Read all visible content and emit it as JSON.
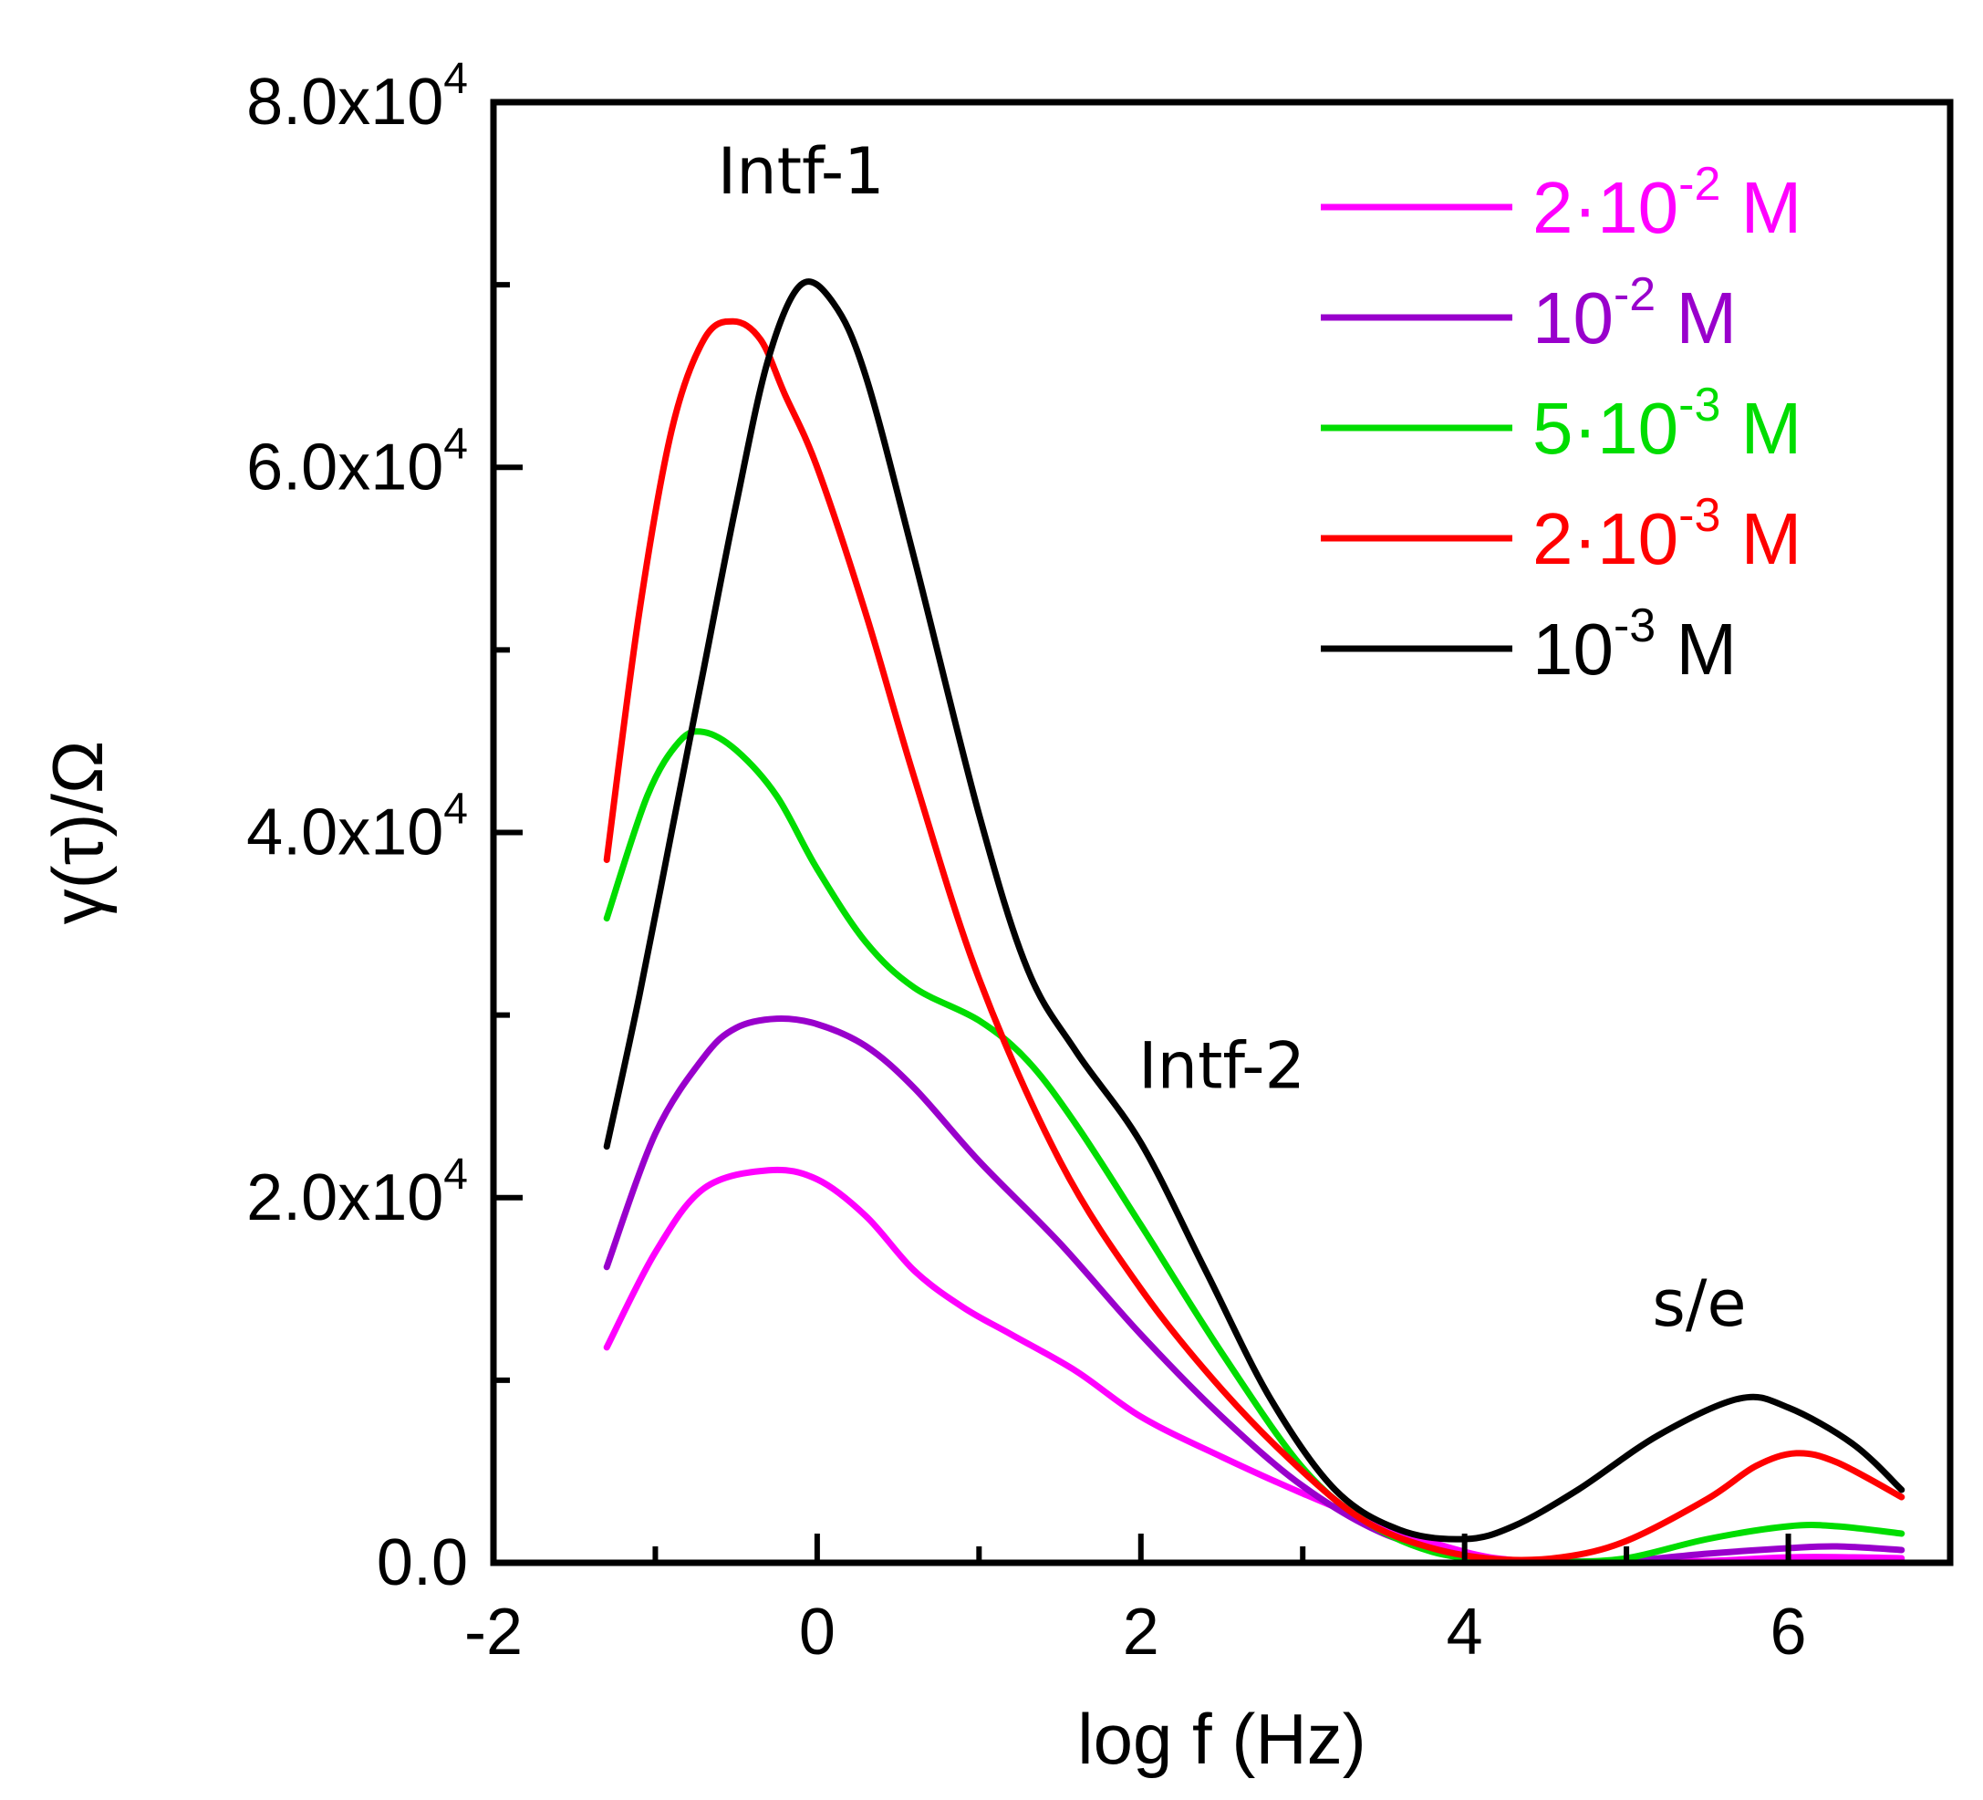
{
  "chart_data": {
    "type": "line",
    "xlabel": "log f (Hz)",
    "ylabel": "γ(τ)/Ω",
    "xlim": [
      -2,
      7
    ],
    "ylim": [
      0,
      80000
    ],
    "x_ticks": [
      {
        "value": -2,
        "label": "-2"
      },
      {
        "value": 0,
        "label": "0"
      },
      {
        "value": 2,
        "label": "2"
      },
      {
        "value": 4,
        "label": "4"
      },
      {
        "value": 6,
        "label": "6"
      }
    ],
    "x_minor_ticks": [
      -1,
      1,
      3,
      5
    ],
    "y_ticks": [
      {
        "value": 0,
        "label": "0.0"
      },
      {
        "value": 20000,
        "mantissa": "2.0x10",
        "exp": "4"
      },
      {
        "value": 40000,
        "mantissa": "4.0x10",
        "exp": "4"
      },
      {
        "value": 60000,
        "mantissa": "6.0x10",
        "exp": "4"
      },
      {
        "value": 80000,
        "mantissa": "8.0x10",
        "exp": "4"
      }
    ],
    "y_minor_ticks": [
      10000,
      30000,
      50000,
      70000
    ],
    "grid": false,
    "legend_position": "top-right",
    "annotations": [
      {
        "text": "Intf-1",
        "x": -0.1,
        "y": 75000
      },
      {
        "text": "Intf-2",
        "x": 2.5,
        "y": 26000
      },
      {
        "text": "s/e",
        "x": 5.45,
        "y": 13000
      }
    ],
    "series": [
      {
        "name": "2·10-2 M",
        "legend": {
          "pre": "2·10",
          "exp": "-2",
          "post": " M"
        },
        "color": "#ff00ff",
        "points": [
          [
            -1.3,
            11800
          ],
          [
            -1.0,
            17000
          ],
          [
            -0.7,
            20500
          ],
          [
            -0.3,
            21500
          ],
          [
            0.0,
            21000
          ],
          [
            0.3,
            19000
          ],
          [
            0.6,
            16000
          ],
          [
            0.9,
            14000
          ],
          [
            1.2,
            12500
          ],
          [
            1.6,
            10500
          ],
          [
            2.0,
            8000
          ],
          [
            2.5,
            5800
          ],
          [
            3.0,
            3800
          ],
          [
            3.5,
            2000
          ],
          [
            4.0,
            600
          ],
          [
            4.3,
            150
          ],
          [
            4.6,
            80
          ],
          [
            5.0,
            80
          ],
          [
            5.5,
            100
          ],
          [
            6.0,
            300
          ],
          [
            6.4,
            300
          ],
          [
            6.7,
            250
          ]
        ]
      },
      {
        "name": "10-2 M",
        "legend": {
          "pre": "10",
          "exp": "-2",
          "post": " M"
        },
        "color": "#9900cc",
        "points": [
          [
            -1.3,
            16200
          ],
          [
            -1.0,
            23500
          ],
          [
            -0.7,
            27700
          ],
          [
            -0.5,
            29300
          ],
          [
            -0.25,
            29800
          ],
          [
            0.0,
            29500
          ],
          [
            0.3,
            28300
          ],
          [
            0.6,
            26000
          ],
          [
            1.0,
            22000
          ],
          [
            1.5,
            17500
          ],
          [
            2.0,
            12500
          ],
          [
            2.5,
            8000
          ],
          [
            3.0,
            4200
          ],
          [
            3.5,
            1600
          ],
          [
            4.0,
            400
          ],
          [
            4.3,
            100
          ],
          [
            4.6,
            50
          ],
          [
            5.0,
            100
          ],
          [
            5.5,
            500
          ],
          [
            6.0,
            800
          ],
          [
            6.3,
            900
          ],
          [
            6.7,
            700
          ]
        ]
      },
      {
        "name": "5·10-3 M",
        "legend": {
          "pre": "5·10",
          "exp": "-3",
          "post": " M"
        },
        "color": "#00dd00",
        "points": [
          [
            -1.3,
            35300
          ],
          [
            -1.05,
            42000
          ],
          [
            -0.85,
            45000
          ],
          [
            -0.7,
            45500
          ],
          [
            -0.5,
            44500
          ],
          [
            -0.25,
            42000
          ],
          [
            0.0,
            38000
          ],
          [
            0.3,
            34000
          ],
          [
            0.6,
            31500
          ],
          [
            1.0,
            29700
          ],
          [
            1.3,
            27500
          ],
          [
            1.6,
            24000
          ],
          [
            2.0,
            18500
          ],
          [
            2.5,
            11500
          ],
          [
            3.0,
            5200
          ],
          [
            3.4,
            2200
          ],
          [
            3.8,
            600
          ],
          [
            4.2,
            150
          ],
          [
            4.6,
            60
          ],
          [
            5.0,
            250
          ],
          [
            5.5,
            1300
          ],
          [
            6.0,
            2000
          ],
          [
            6.3,
            2000
          ],
          [
            6.7,
            1600
          ]
        ]
      },
      {
        "name": "2·10-3 M",
        "legend": {
          "pre": "2·10",
          "exp": "-3",
          "post": " M"
        },
        "color": "#ff0000",
        "points": [
          [
            -1.3,
            38500
          ],
          [
            -1.1,
            52000
          ],
          [
            -0.9,
            62000
          ],
          [
            -0.7,
            67000
          ],
          [
            -0.52,
            68000
          ],
          [
            -0.35,
            67000
          ],
          [
            -0.2,
            64000
          ],
          [
            0.0,
            60000
          ],
          [
            0.3,
            52000
          ],
          [
            0.6,
            43000
          ],
          [
            1.0,
            32000
          ],
          [
            1.5,
            22000
          ],
          [
            2.0,
            15000
          ],
          [
            2.5,
            9500
          ],
          [
            3.0,
            5000
          ],
          [
            3.4,
            2200
          ],
          [
            3.8,
            800
          ],
          [
            4.2,
            200
          ],
          [
            4.6,
            300
          ],
          [
            5.0,
            1200
          ],
          [
            5.5,
            3500
          ],
          [
            5.8,
            5300
          ],
          [
            6.05,
            6000
          ],
          [
            6.3,
            5500
          ],
          [
            6.7,
            3600
          ]
        ]
      },
      {
        "name": "10-3 M",
        "legend": {
          "pre": "10",
          "exp": "-3",
          "post": " M"
        },
        "color": "#000000",
        "points": [
          [
            -1.3,
            22800
          ],
          [
            -1.1,
            31000
          ],
          [
            -0.9,
            40000
          ],
          [
            -0.7,
            49000
          ],
          [
            -0.5,
            58000
          ],
          [
            -0.3,
            66000
          ],
          [
            -0.1,
            70000
          ],
          [
            0.1,
            69000
          ],
          [
            0.3,
            65000
          ],
          [
            0.6,
            55000
          ],
          [
            1.0,
            41000
          ],
          [
            1.3,
            32500
          ],
          [
            1.6,
            28000
          ],
          [
            2.0,
            23000
          ],
          [
            2.4,
            16000
          ],
          [
            2.8,
            9000
          ],
          [
            3.2,
            4000
          ],
          [
            3.6,
            1800
          ],
          [
            4.0,
            1300
          ],
          [
            4.3,
            2000
          ],
          [
            4.7,
            4000
          ],
          [
            5.2,
            7000
          ],
          [
            5.7,
            9000
          ],
          [
            6.0,
            8500
          ],
          [
            6.4,
            6500
          ],
          [
            6.7,
            4000
          ]
        ]
      }
    ]
  }
}
